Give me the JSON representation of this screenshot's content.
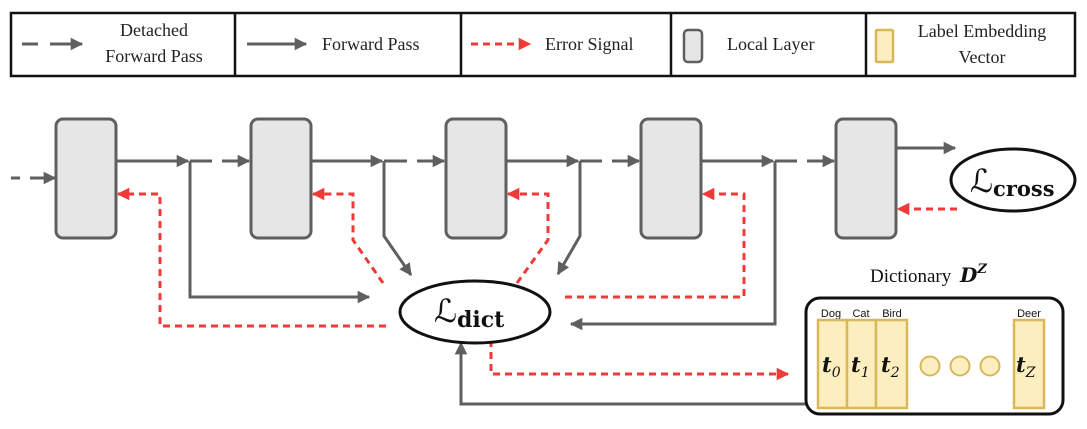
{
  "legend": {
    "detached": [
      "Detached",
      "Forward Pass"
    ],
    "forward": "Forward Pass",
    "error": "Error Signal",
    "local": "Local Layer",
    "label_embedding": [
      "Label Embedding",
      "Vector"
    ]
  },
  "losses": {
    "cross_symbol": "ℒ",
    "cross_sub": "cross",
    "dict_symbol": "ℒ",
    "dict_sub": "dict"
  },
  "dictionary": {
    "title": "Dictionary",
    "symbol": "D",
    "superscript": "Z",
    "vectors": [
      {
        "class": "Dog",
        "symbol": "t",
        "sub": "0"
      },
      {
        "class": "Cat",
        "symbol": "t",
        "sub": "1"
      },
      {
        "class": "Bird",
        "symbol": "t",
        "sub": "2"
      },
      {
        "class": "Deer",
        "symbol": "t",
        "sub": "Z"
      }
    ]
  },
  "colors": {
    "arrow_gray": "#5f5f5f",
    "error_red": "#f03a3a",
    "layer_fill": "#e6e6e6",
    "embed_fill": "#fdeec0",
    "embed_stroke": "#d9b85a"
  }
}
